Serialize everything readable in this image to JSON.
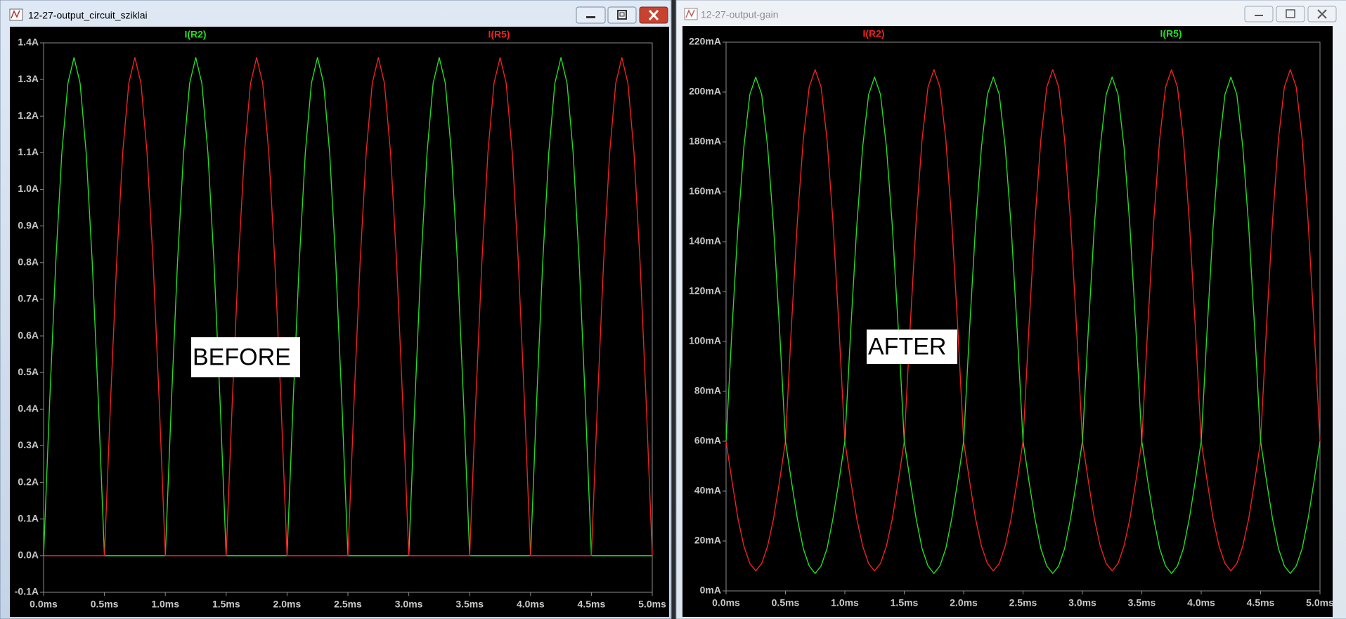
{
  "chart_data": [
    {
      "type": "line",
      "window_title": "12-27-output_circuit_sziklai",
      "annotation": "BEFORE",
      "grid": false,
      "x": [
        0,
        0.05,
        0.1,
        0.15,
        0.2,
        0.25,
        0.3,
        0.35,
        0.4,
        0.45,
        0.5,
        0.55,
        0.6,
        0.65,
        0.7,
        0.75,
        0.8,
        0.85,
        0.9,
        0.95,
        1,
        1.05,
        1.1,
        1.15,
        1.2,
        1.25,
        1.3,
        1.35,
        1.4,
        1.45,
        1.5,
        1.55,
        1.6,
        1.65,
        1.7,
        1.75,
        1.8,
        1.85,
        1.9,
        1.95,
        2,
        2.05,
        2.1,
        2.15,
        2.2,
        2.25,
        2.3,
        2.35,
        2.4,
        2.45,
        2.5,
        2.55,
        2.6,
        2.65,
        2.7,
        2.75,
        2.8,
        2.85,
        2.9,
        2.95,
        3,
        3.05,
        3.1,
        3.15,
        3.2,
        3.25,
        3.3,
        3.35,
        3.4,
        3.45,
        3.5,
        3.55,
        3.6,
        3.65,
        3.7,
        3.75,
        3.8,
        3.85,
        3.9,
        3.95,
        4,
        4.05,
        4.1,
        4.15,
        4.2,
        4.25,
        4.3,
        4.35,
        4.4,
        4.45,
        4.5,
        4.55,
        4.6,
        4.65,
        4.7,
        4.75,
        4.8,
        4.85,
        4.9,
        4.95,
        5
      ],
      "series": [
        {
          "name": "I(R2)",
          "color": "#22dd22",
          "values": [
            0,
            0.42,
            0.8,
            1.1,
            1.29,
            1.36,
            1.29,
            1.1,
            0.8,
            0.42,
            0,
            0,
            0,
            0,
            0,
            0,
            0,
            0,
            0,
            0,
            0,
            0.42,
            0.8,
            1.1,
            1.29,
            1.36,
            1.29,
            1.1,
            0.8,
            0.42,
            0,
            0,
            0,
            0,
            0,
            0,
            0,
            0,
            0,
            0,
            0,
            0.42,
            0.8,
            1.1,
            1.29,
            1.36,
            1.29,
            1.1,
            0.8,
            0.42,
            0,
            0,
            0,
            0,
            0,
            0,
            0,
            0,
            0,
            0,
            0,
            0.42,
            0.8,
            1.1,
            1.29,
            1.36,
            1.29,
            1.1,
            0.8,
            0.42,
            0,
            0,
            0,
            0,
            0,
            0,
            0,
            0,
            0,
            0,
            0,
            0.42,
            0.8,
            1.1,
            1.29,
            1.36,
            1.29,
            1.1,
            0.8,
            0.42,
            0,
            0,
            0,
            0,
            0,
            0,
            0,
            0,
            0,
            0,
            0
          ]
        },
        {
          "name": "I(R5)",
          "color": "#ee2222",
          "values": [
            0,
            0,
            0,
            0,
            0,
            0,
            0,
            0,
            0,
            0,
            0,
            0.42,
            0.8,
            1.1,
            1.29,
            1.36,
            1.29,
            1.1,
            0.8,
            0.42,
            0,
            0,
            0,
            0,
            0,
            0,
            0,
            0,
            0,
            0,
            0,
            0.42,
            0.8,
            1.1,
            1.29,
            1.36,
            1.29,
            1.1,
            0.8,
            0.42,
            0,
            0,
            0,
            0,
            0,
            0,
            0,
            0,
            0,
            0,
            0,
            0.42,
            0.8,
            1.1,
            1.29,
            1.36,
            1.29,
            1.1,
            0.8,
            0.42,
            0,
            0,
            0,
            0,
            0,
            0,
            0,
            0,
            0,
            0,
            0,
            0.42,
            0.8,
            1.1,
            1.29,
            1.36,
            1.29,
            1.1,
            0.8,
            0.42,
            0,
            0,
            0,
            0,
            0,
            0,
            0,
            0,
            0,
            0,
            0,
            0.42,
            0.8,
            1.1,
            1.29,
            1.36,
            1.29,
            1.1,
            0.8,
            0.42,
            0
          ]
        }
      ],
      "xlim": [
        0,
        5
      ],
      "xticks": [
        {
          "value": 0,
          "label": "0.0ms"
        },
        {
          "value": 0.5,
          "label": "0.5ms"
        },
        {
          "value": 1,
          "label": "1.0ms"
        },
        {
          "value": 1.5,
          "label": "1.5ms"
        },
        {
          "value": 2,
          "label": "2.0ms"
        },
        {
          "value": 2.5,
          "label": "2.5ms"
        },
        {
          "value": 3,
          "label": "3.0ms"
        },
        {
          "value": 3.5,
          "label": "3.5ms"
        },
        {
          "value": 4,
          "label": "4.0ms"
        },
        {
          "value": 4.5,
          "label": "4.5ms"
        },
        {
          "value": 5,
          "label": "5.0ms"
        }
      ],
      "ylim": [
        -0.1,
        1.4
      ],
      "yticks": [
        {
          "value": -0.1,
          "label": "-0.1A"
        },
        {
          "value": 0,
          "label": "0.0A"
        },
        {
          "value": 0.1,
          "label": "0.1A"
        },
        {
          "value": 0.2,
          "label": "0.2A"
        },
        {
          "value": 0.3,
          "label": "0.3A"
        },
        {
          "value": 0.4,
          "label": "0.4A"
        },
        {
          "value": 0.5,
          "label": "0.5A"
        },
        {
          "value": 0.6,
          "label": "0.6A"
        },
        {
          "value": 0.7,
          "label": "0.7A"
        },
        {
          "value": 0.8,
          "label": "0.8A"
        },
        {
          "value": 0.9,
          "label": "0.9A"
        },
        {
          "value": 1,
          "label": "1.0A"
        },
        {
          "value": 1.1,
          "label": "1.1A"
        },
        {
          "value": 1.2,
          "label": "1.2A"
        },
        {
          "value": 1.3,
          "label": "1.3A"
        },
        {
          "value": 1.4,
          "label": "1.4A"
        }
      ]
    },
    {
      "type": "line",
      "window_title": "12-27-output-gain",
      "annotation": "AFTER",
      "grid": false,
      "x": [
        0,
        0.05,
        0.1,
        0.15,
        0.2,
        0.25,
        0.3,
        0.35,
        0.4,
        0.45,
        0.5,
        0.55,
        0.6,
        0.65,
        0.7,
        0.75,
        0.8,
        0.85,
        0.9,
        0.95,
        1,
        1.05,
        1.1,
        1.15,
        1.2,
        1.25,
        1.3,
        1.35,
        1.4,
        1.45,
        1.5,
        1.55,
        1.6,
        1.65,
        1.7,
        1.75,
        1.8,
        1.85,
        1.9,
        1.95,
        2,
        2.05,
        2.1,
        2.15,
        2.2,
        2.25,
        2.3,
        2.35,
        2.4,
        2.45,
        2.5,
        2.55,
        2.6,
        2.65,
        2.7,
        2.75,
        2.8,
        2.85,
        2.9,
        2.95,
        3,
        3.05,
        3.1,
        3.15,
        3.2,
        3.25,
        3.3,
        3.35,
        3.4,
        3.45,
        3.5,
        3.55,
        3.6,
        3.65,
        3.7,
        3.75,
        3.8,
        3.85,
        3.9,
        3.95,
        4,
        4.05,
        4.1,
        4.15,
        4.2,
        4.25,
        4.3,
        4.35,
        4.4,
        4.45,
        4.5,
        4.55,
        4.6,
        4.65,
        4.7,
        4.75,
        4.8,
        4.85,
        4.9,
        4.95,
        5
      ],
      "series": [
        {
          "name": "I(R2)",
          "color": "#ee2222",
          "values": [
            60,
            44,
            29,
            18,
            11,
            8,
            11,
            18,
            29,
            44,
            60,
            106,
            148,
            181,
            202,
            209,
            202,
            181,
            148,
            106,
            60,
            44,
            29,
            18,
            11,
            8,
            11,
            18,
            29,
            44,
            60,
            106,
            148,
            181,
            202,
            209,
            202,
            181,
            148,
            106,
            60,
            44,
            29,
            18,
            11,
            8,
            11,
            18,
            29,
            44,
            60,
            106,
            148,
            181,
            202,
            209,
            202,
            181,
            148,
            106,
            60,
            44,
            29,
            18,
            11,
            8,
            11,
            18,
            29,
            44,
            60,
            106,
            148,
            181,
            202,
            209,
            202,
            181,
            148,
            106,
            60,
            44,
            29,
            18,
            11,
            8,
            11,
            18,
            29,
            44,
            60,
            106,
            148,
            181,
            202,
            209,
            202,
            181,
            148,
            106,
            60
          ]
        },
        {
          "name": "I(R5)",
          "color": "#22dd22",
          "values": [
            60,
            105,
            146,
            178,
            199,
            206,
            199,
            178,
            146,
            105,
            60,
            44,
            29,
            17,
            10,
            7,
            10,
            17,
            29,
            44,
            60,
            105,
            146,
            178,
            199,
            206,
            199,
            178,
            146,
            105,
            60,
            44,
            29,
            17,
            10,
            7,
            10,
            17,
            29,
            44,
            60,
            105,
            146,
            178,
            199,
            206,
            199,
            178,
            146,
            105,
            60,
            44,
            29,
            17,
            10,
            7,
            10,
            17,
            29,
            44,
            60,
            105,
            146,
            178,
            199,
            206,
            199,
            178,
            146,
            105,
            60,
            44,
            29,
            17,
            10,
            7,
            10,
            17,
            29,
            44,
            60,
            105,
            146,
            178,
            199,
            206,
            199,
            178,
            146,
            105,
            60,
            44,
            29,
            17,
            10,
            7,
            10,
            17,
            29,
            44,
            60
          ]
        }
      ],
      "xlim": [
        0,
        5
      ],
      "xticks": [
        {
          "value": 0,
          "label": "0.0ms"
        },
        {
          "value": 0.5,
          "label": "0.5ms"
        },
        {
          "value": 1,
          "label": "1.0ms"
        },
        {
          "value": 1.5,
          "label": "1.5ms"
        },
        {
          "value": 2,
          "label": "2.0ms"
        },
        {
          "value": 2.5,
          "label": "2.5ms"
        },
        {
          "value": 3,
          "label": "3.0ms"
        },
        {
          "value": 3.5,
          "label": "3.5ms"
        },
        {
          "value": 4,
          "label": "4.0ms"
        },
        {
          "value": 4.5,
          "label": "4.5ms"
        },
        {
          "value": 5,
          "label": "5.0ms"
        }
      ],
      "ylim": [
        0,
        220
      ],
      "yticks": [
        {
          "value": 0,
          "label": "0mA"
        },
        {
          "value": 20,
          "label": "20mA"
        },
        {
          "value": 40,
          "label": "40mA"
        },
        {
          "value": 60,
          "label": "60mA"
        },
        {
          "value": 80,
          "label": "80mA"
        },
        {
          "value": 100,
          "label": "100mA"
        },
        {
          "value": 120,
          "label": "120mA"
        },
        {
          "value": 140,
          "label": "140mA"
        },
        {
          "value": 160,
          "label": "160mA"
        },
        {
          "value": 180,
          "label": "180mA"
        },
        {
          "value": 200,
          "label": "200mA"
        },
        {
          "value": 220,
          "label": "220mA"
        }
      ]
    }
  ]
}
